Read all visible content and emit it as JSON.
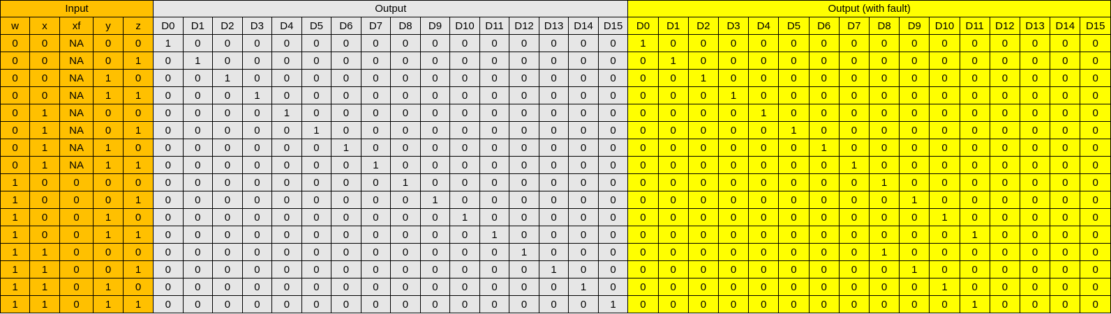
{
  "sections": {
    "input": "Input",
    "output": "Output",
    "fault": "Output (with fault)"
  },
  "colors": {
    "input": "#FFC000",
    "output": "#E6E6E6",
    "fault": "#FFFF00"
  },
  "input_headers": [
    "w",
    "x",
    "xf",
    "y",
    "z"
  ],
  "output_headers": [
    "D0",
    "D1",
    "D2",
    "D3",
    "D4",
    "D5",
    "D6",
    "D7",
    "D8",
    "D9",
    "D10",
    "D11",
    "D12",
    "D13",
    "D14",
    "D15"
  ],
  "fault_headers": [
    "D0",
    "D1",
    "D2",
    "D3",
    "D4",
    "D5",
    "D6",
    "D7",
    "D8",
    "D9",
    "D10",
    "D11",
    "D12",
    "D13",
    "D14",
    "D15"
  ],
  "rows": [
    {
      "input": [
        "0",
        "0",
        "NA",
        "0",
        "0"
      ],
      "output": [
        "1",
        "0",
        "0",
        "0",
        "0",
        "0",
        "0",
        "0",
        "0",
        "0",
        "0",
        "0",
        "0",
        "0",
        "0",
        "0"
      ],
      "fault": [
        "1",
        "0",
        "0",
        "0",
        "0",
        "0",
        "0",
        "0",
        "0",
        "0",
        "0",
        "0",
        "0",
        "0",
        "0",
        "0"
      ]
    },
    {
      "input": [
        "0",
        "0",
        "NA",
        "0",
        "1"
      ],
      "output": [
        "0",
        "1",
        "0",
        "0",
        "0",
        "0",
        "0",
        "0",
        "0",
        "0",
        "0",
        "0",
        "0",
        "0",
        "0",
        "0"
      ],
      "fault": [
        "0",
        "1",
        "0",
        "0",
        "0",
        "0",
        "0",
        "0",
        "0",
        "0",
        "0",
        "0",
        "0",
        "0",
        "0",
        "0"
      ]
    },
    {
      "input": [
        "0",
        "0",
        "NA",
        "1",
        "0"
      ],
      "output": [
        "0",
        "0",
        "1",
        "0",
        "0",
        "0",
        "0",
        "0",
        "0",
        "0",
        "0",
        "0",
        "0",
        "0",
        "0",
        "0"
      ],
      "fault": [
        "0",
        "0",
        "1",
        "0",
        "0",
        "0",
        "0",
        "0",
        "0",
        "0",
        "0",
        "0",
        "0",
        "0",
        "0",
        "0"
      ]
    },
    {
      "input": [
        "0",
        "0",
        "NA",
        "1",
        "1"
      ],
      "output": [
        "0",
        "0",
        "0",
        "1",
        "0",
        "0",
        "0",
        "0",
        "0",
        "0",
        "0",
        "0",
        "0",
        "0",
        "0",
        "0"
      ],
      "fault": [
        "0",
        "0",
        "0",
        "1",
        "0",
        "0",
        "0",
        "0",
        "0",
        "0",
        "0",
        "0",
        "0",
        "0",
        "0",
        "0"
      ]
    },
    {
      "input": [
        "0",
        "1",
        "NA",
        "0",
        "0"
      ],
      "output": [
        "0",
        "0",
        "0",
        "0",
        "1",
        "0",
        "0",
        "0",
        "0",
        "0",
        "0",
        "0",
        "0",
        "0",
        "0",
        "0"
      ],
      "fault": [
        "0",
        "0",
        "0",
        "0",
        "1",
        "0",
        "0",
        "0",
        "0",
        "0",
        "0",
        "0",
        "0",
        "0",
        "0",
        "0"
      ]
    },
    {
      "input": [
        "0",
        "1",
        "NA",
        "0",
        "1"
      ],
      "output": [
        "0",
        "0",
        "0",
        "0",
        "0",
        "1",
        "0",
        "0",
        "0",
        "0",
        "0",
        "0",
        "0",
        "0",
        "0",
        "0"
      ],
      "fault": [
        "0",
        "0",
        "0",
        "0",
        "0",
        "1",
        "0",
        "0",
        "0",
        "0",
        "0",
        "0",
        "0",
        "0",
        "0",
        "0"
      ]
    },
    {
      "input": [
        "0",
        "1",
        "NA",
        "1",
        "0"
      ],
      "output": [
        "0",
        "0",
        "0",
        "0",
        "0",
        "0",
        "1",
        "0",
        "0",
        "0",
        "0",
        "0",
        "0",
        "0",
        "0",
        "0"
      ],
      "fault": [
        "0",
        "0",
        "0",
        "0",
        "0",
        "0",
        "1",
        "0",
        "0",
        "0",
        "0",
        "0",
        "0",
        "0",
        "0",
        "0"
      ]
    },
    {
      "input": [
        "0",
        "1",
        "NA",
        "1",
        "1"
      ],
      "output": [
        "0",
        "0",
        "0",
        "0",
        "0",
        "0",
        "0",
        "1",
        "0",
        "0",
        "0",
        "0",
        "0",
        "0",
        "0",
        "0"
      ],
      "fault": [
        "0",
        "0",
        "0",
        "0",
        "0",
        "0",
        "0",
        "1",
        "0",
        "0",
        "0",
        "0",
        "0",
        "0",
        "0",
        "0"
      ]
    },
    {
      "input": [
        "1",
        "0",
        "0",
        "0",
        "0"
      ],
      "output": [
        "0",
        "0",
        "0",
        "0",
        "0",
        "0",
        "0",
        "0",
        "1",
        "0",
        "0",
        "0",
        "0",
        "0",
        "0",
        "0"
      ],
      "fault": [
        "0",
        "0",
        "0",
        "0",
        "0",
        "0",
        "0",
        "0",
        "1",
        "0",
        "0",
        "0",
        "0",
        "0",
        "0",
        "0"
      ]
    },
    {
      "input": [
        "1",
        "0",
        "0",
        "0",
        "1"
      ],
      "output": [
        "0",
        "0",
        "0",
        "0",
        "0",
        "0",
        "0",
        "0",
        "0",
        "1",
        "0",
        "0",
        "0",
        "0",
        "0",
        "0"
      ],
      "fault": [
        "0",
        "0",
        "0",
        "0",
        "0",
        "0",
        "0",
        "0",
        "0",
        "1",
        "0",
        "0",
        "0",
        "0",
        "0",
        "0"
      ]
    },
    {
      "input": [
        "1",
        "0",
        "0",
        "1",
        "0"
      ],
      "output": [
        "0",
        "0",
        "0",
        "0",
        "0",
        "0",
        "0",
        "0",
        "0",
        "0",
        "1",
        "0",
        "0",
        "0",
        "0",
        "0"
      ],
      "fault": [
        "0",
        "0",
        "0",
        "0",
        "0",
        "0",
        "0",
        "0",
        "0",
        "0",
        "1",
        "0",
        "0",
        "0",
        "0",
        "0"
      ]
    },
    {
      "input": [
        "1",
        "0",
        "0",
        "1",
        "1"
      ],
      "output": [
        "0",
        "0",
        "0",
        "0",
        "0",
        "0",
        "0",
        "0",
        "0",
        "0",
        "0",
        "1",
        "0",
        "0",
        "0",
        "0"
      ],
      "fault": [
        "0",
        "0",
        "0",
        "0",
        "0",
        "0",
        "0",
        "0",
        "0",
        "0",
        "0",
        "1",
        "0",
        "0",
        "0",
        "0"
      ]
    },
    {
      "input": [
        "1",
        "1",
        "0",
        "0",
        "0"
      ],
      "output": [
        "0",
        "0",
        "0",
        "0",
        "0",
        "0",
        "0",
        "0",
        "0",
        "0",
        "0",
        "0",
        "1",
        "0",
        "0",
        "0"
      ],
      "fault": [
        "0",
        "0",
        "0",
        "0",
        "0",
        "0",
        "0",
        "0",
        "1",
        "0",
        "0",
        "0",
        "0",
        "0",
        "0",
        "0"
      ]
    },
    {
      "input": [
        "1",
        "1",
        "0",
        "0",
        "1"
      ],
      "output": [
        "0",
        "0",
        "0",
        "0",
        "0",
        "0",
        "0",
        "0",
        "0",
        "0",
        "0",
        "0",
        "0",
        "1",
        "0",
        "0"
      ],
      "fault": [
        "0",
        "0",
        "0",
        "0",
        "0",
        "0",
        "0",
        "0",
        "0",
        "1",
        "0",
        "0",
        "0",
        "0",
        "0",
        "0"
      ]
    },
    {
      "input": [
        "1",
        "1",
        "0",
        "1",
        "0"
      ],
      "output": [
        "0",
        "0",
        "0",
        "0",
        "0",
        "0",
        "0",
        "0",
        "0",
        "0",
        "0",
        "0",
        "0",
        "0",
        "1",
        "0"
      ],
      "fault": [
        "0",
        "0",
        "0",
        "0",
        "0",
        "0",
        "0",
        "0",
        "0",
        "0",
        "1",
        "0",
        "0",
        "0",
        "0",
        "0"
      ]
    },
    {
      "input": [
        "1",
        "1",
        "0",
        "1",
        "1"
      ],
      "output": [
        "0",
        "0",
        "0",
        "0",
        "0",
        "0",
        "0",
        "0",
        "0",
        "0",
        "0",
        "0",
        "0",
        "0",
        "0",
        "1"
      ],
      "fault": [
        "0",
        "0",
        "0",
        "0",
        "0",
        "0",
        "0",
        "0",
        "0",
        "0",
        "0",
        "1",
        "0",
        "0",
        "0",
        "0"
      ]
    }
  ]
}
